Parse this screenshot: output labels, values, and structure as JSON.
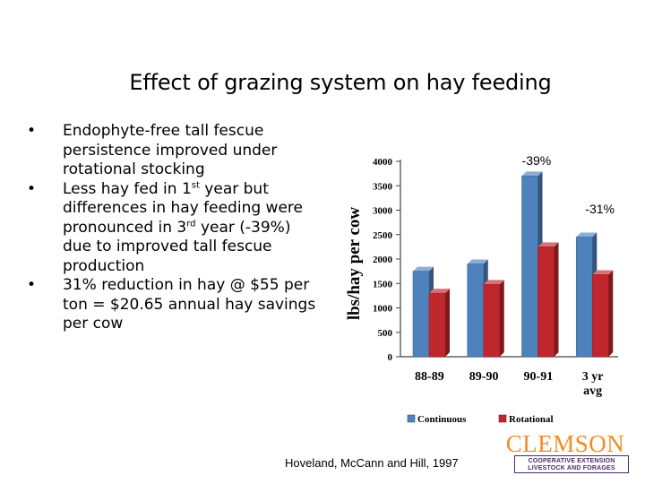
{
  "slide": {
    "title": "Effect of grazing system on hay feeding",
    "bullets": [
      {
        "parts": [
          "Endophyte-free tall fescue persistence improved under rotational stocking"
        ]
      },
      {
        "parts": [
          "Less hay fed in 1",
          "st",
          " year but differences in hay feeding were pronounced in 3",
          "rd",
          " year (-39%) due to improved tall fescue production"
        ]
      },
      {
        "parts": [
          "31% reduction in hay @ $55 per ton = $20.65 annual hay savings per cow"
        ]
      }
    ],
    "citation": "Hoveland, McCann and Hill, 1997"
  },
  "logo": {
    "word": "CLEMSON",
    "line1": "COOPERATIVE EXTENSION",
    "line2": "LIVESTOCK AND FORAGES"
  },
  "chart_data": {
    "type": "bar",
    "categories": [
      "88-89",
      "89-90",
      "90-91",
      "3 yr avg"
    ],
    "category_lines": [
      [
        "88-89"
      ],
      [
        "89-90"
      ],
      [
        "90-91"
      ],
      [
        "3 yr",
        "avg"
      ]
    ],
    "series": [
      {
        "name": "Continuous",
        "values": [
          1750,
          1900,
          3700,
          2450
        ],
        "color": "#4f81bd"
      },
      {
        "name": "Rotational",
        "values": [
          1300,
          1480,
          2250,
          1680
        ],
        "color": "#c0272d"
      }
    ],
    "ylabel": "lbs/hay per cow",
    "xlabel": "",
    "ylim": [
      0,
      4000
    ],
    "yticks": [
      0,
      500,
      1000,
      1500,
      2000,
      2500,
      3000,
      3500,
      4000
    ],
    "grid": false,
    "legend_position": "bottom",
    "annotations": [
      {
        "text": "-39%",
        "category": "90-91"
      },
      {
        "text": "-31%",
        "category": "3 yr avg"
      }
    ]
  }
}
